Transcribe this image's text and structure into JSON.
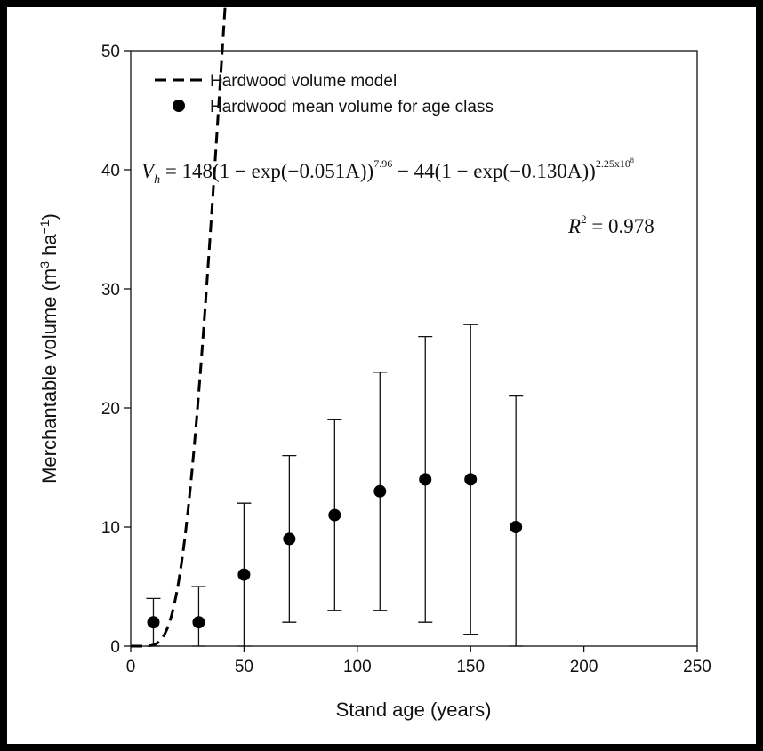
{
  "chart_data": {
    "type": "scatter",
    "xlabel": "Stand age (years)",
    "ylabel_main": "Merchantable volume (m",
    "ylabel_sup1": "3",
    "ylabel_mid": " ha",
    "ylabel_sup2": "−1",
    "ylabel_end": ")",
    "xlim": [
      0,
      250
    ],
    "ylim": [
      0,
      50
    ],
    "xticks": [
      0,
      50,
      100,
      150,
      200,
      250
    ],
    "yticks": [
      0,
      10,
      20,
      30,
      40,
      50
    ],
    "grid": false,
    "legend_position": "top-left",
    "series": [
      {
        "name": "Hardwood volume model",
        "kind": "dashed-line",
        "color": "#000000",
        "model": {
          "a": 148,
          "b": 0.051,
          "c": 7.96,
          "d": 44,
          "e": 0.13,
          "f": 225000000.0
        }
      },
      {
        "name": "Hardwood mean volume for age class",
        "kind": "points-with-error-bars",
        "color": "#000000",
        "points": [
          {
            "x": 10,
            "y": 2,
            "low": 0,
            "high": 4
          },
          {
            "x": 30,
            "y": 2,
            "low": 0,
            "high": 5
          },
          {
            "x": 50,
            "y": 6,
            "low": 0,
            "high": 12
          },
          {
            "x": 70,
            "y": 9,
            "low": 2,
            "high": 16
          },
          {
            "x": 90,
            "y": 11,
            "low": 3,
            "high": 19
          },
          {
            "x": 110,
            "y": 13,
            "low": 3,
            "high": 23
          },
          {
            "x": 130,
            "y": 14,
            "low": 2,
            "high": 26
          },
          {
            "x": 150,
            "y": 14,
            "low": 1,
            "high": 27
          },
          {
            "x": 170,
            "y": 10,
            "low": 0,
            "high": 21
          }
        ]
      }
    ],
    "annotations": {
      "equation": {
        "lhs": "V",
        "lhs_sub": "h",
        "part1": " = 148(1 − exp(−0.051A))",
        "sup1": "7.96",
        "part2": " − 44(1 − exp(−0.130A))",
        "sup2": "2.25x10",
        "sup2_exp": "8"
      },
      "r2": {
        "lhs": "R",
        "lhs_sup": "2",
        "rhs": " = 0.978"
      }
    }
  }
}
